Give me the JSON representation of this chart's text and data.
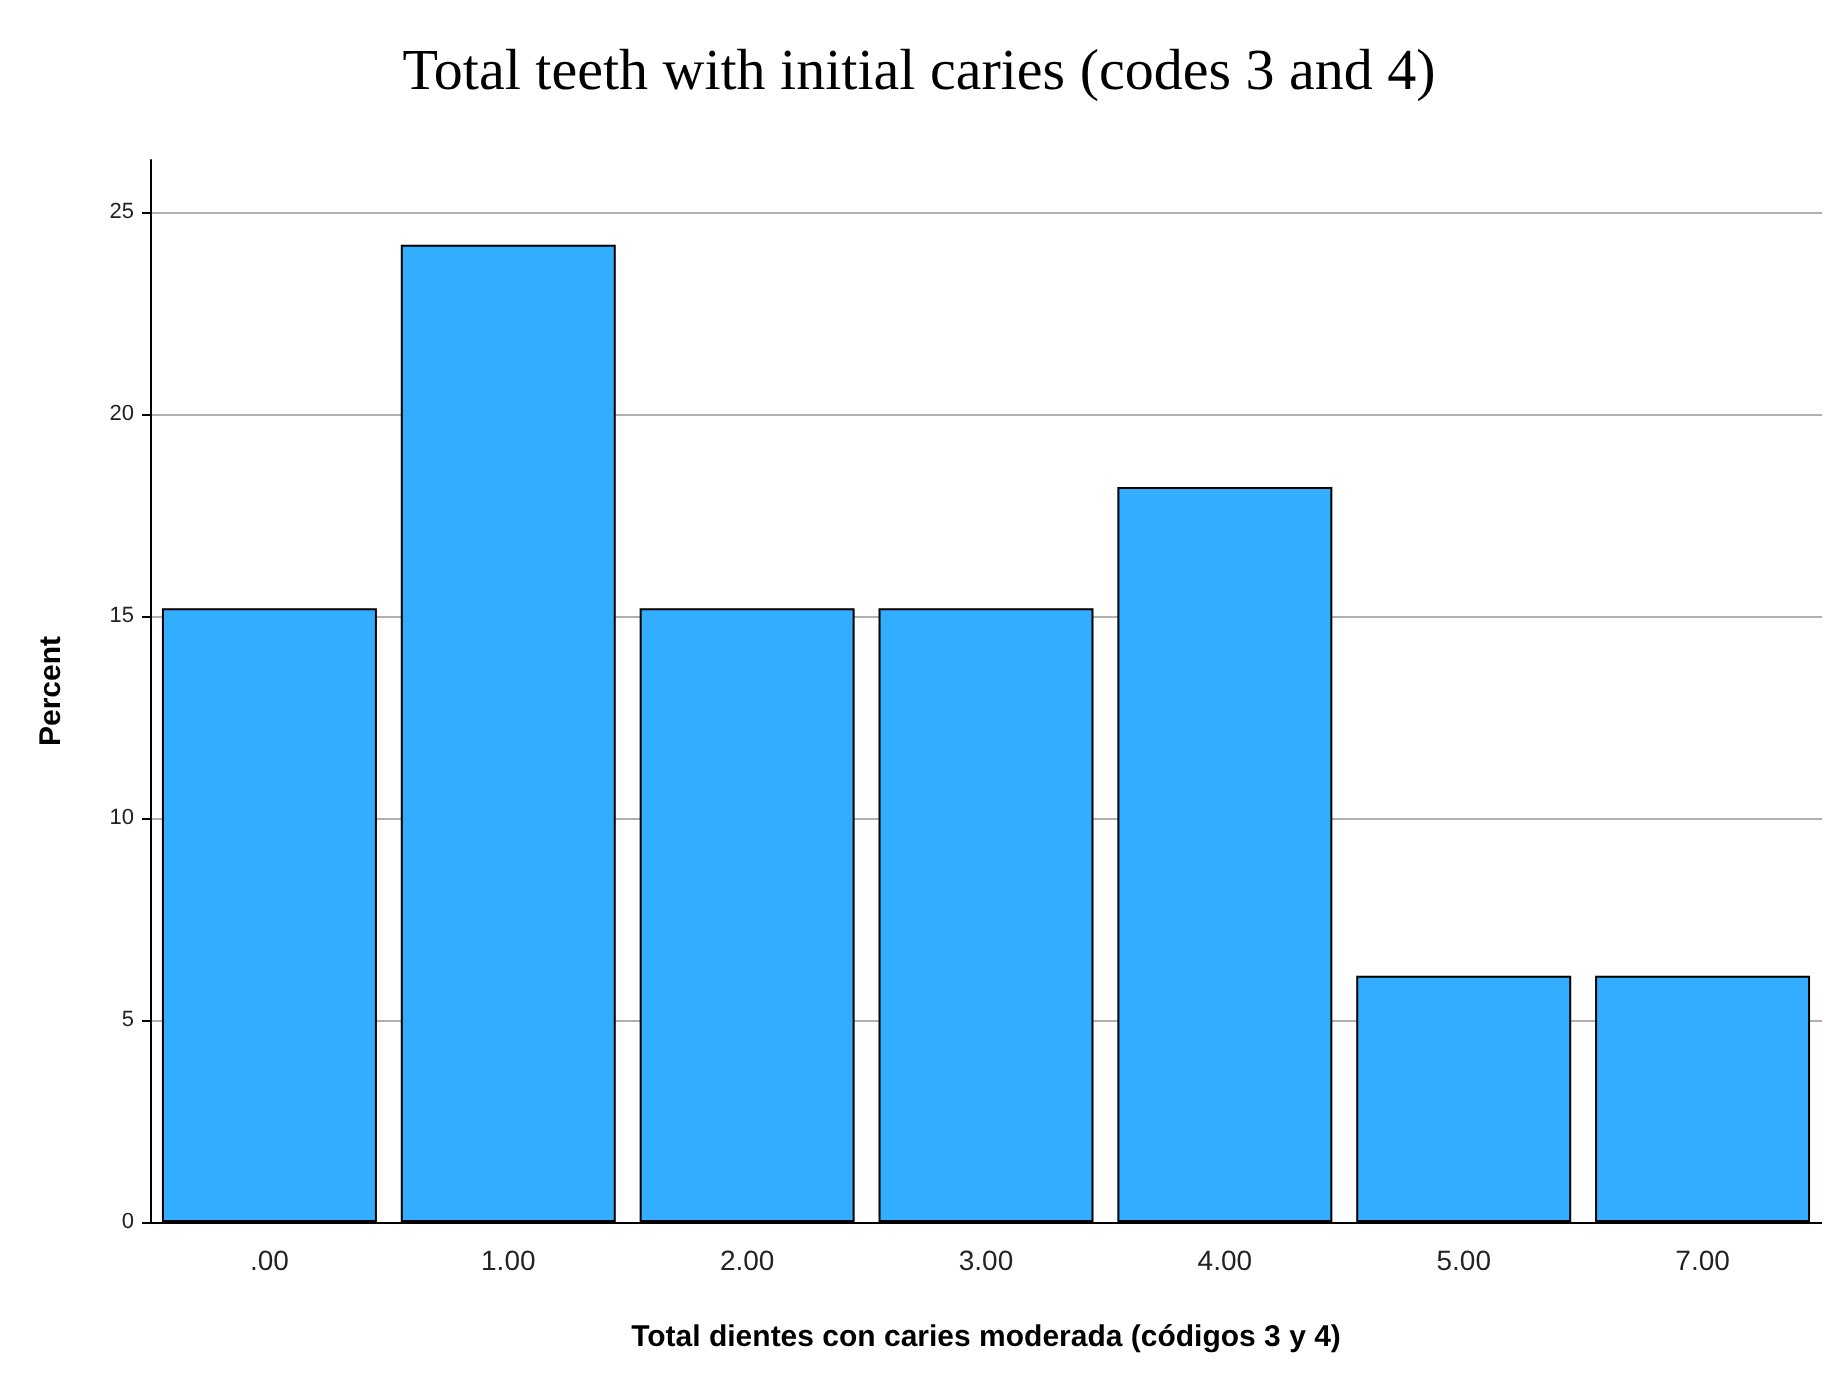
{
  "chart_data": {
    "type": "bar",
    "title": "Total teeth with initial caries (codes 3 and 4)",
    "xlabel": "Total dientes con caries moderada (códigos 3 y 4)",
    "ylabel": "Percent",
    "categories": [
      ".00",
      "1.00",
      "2.00",
      "3.00",
      "4.00",
      "5.00",
      "7.00"
    ],
    "values": [
      15.2,
      24.2,
      15.2,
      15.2,
      18.2,
      6.1,
      6.1
    ],
    "color": "#33adff",
    "ylim": [
      0,
      26.3
    ],
    "yticks": [
      0,
      5,
      10,
      15,
      20,
      25
    ],
    "grid": "y"
  }
}
